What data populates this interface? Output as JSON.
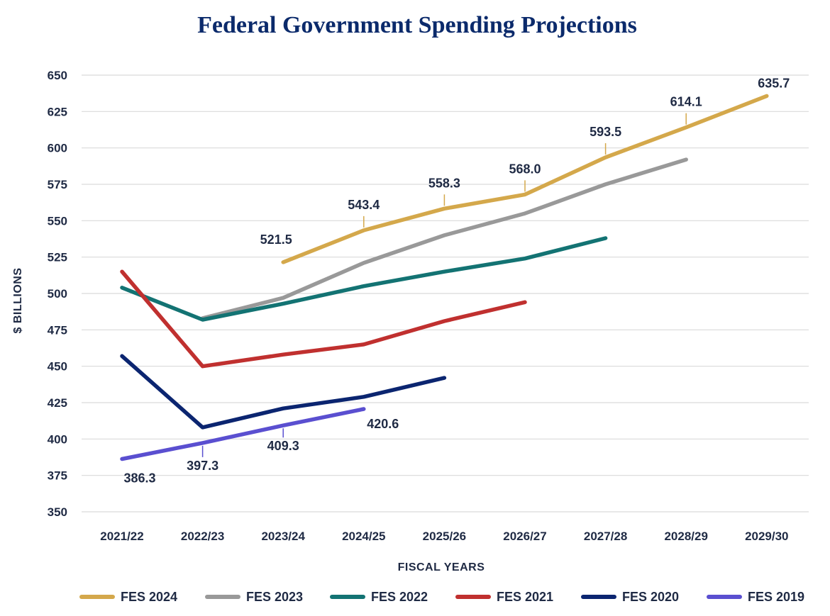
{
  "chart_data": {
    "type": "line",
    "title": "Federal Government Spending Projections",
    "xlabel": "FISCAL YEARS",
    "ylabel": "$ BILLIONS",
    "categories": [
      "2021/22",
      "2022/23",
      "2023/24",
      "2024/25",
      "2025/26",
      "2026/27",
      "2027/28",
      "2028/29",
      "2029/30"
    ],
    "ylim": [
      350,
      650
    ],
    "yticks": [
      350,
      375,
      400,
      425,
      450,
      475,
      500,
      525,
      550,
      575,
      600,
      625,
      650
    ],
    "grid": true,
    "legend_position": "bottom",
    "series": [
      {
        "name": "FES 2024",
        "color": "#d4a84b",
        "values": [
          null,
          null,
          521.5,
          543.4,
          558.3,
          568.0,
          593.5,
          614.1,
          635.7
        ],
        "labels": [
          null,
          null,
          "521.5",
          "543.4",
          "558.3",
          "568.0",
          "593.5",
          "614.1",
          "635.7"
        ]
      },
      {
        "name": "FES 2023",
        "color": "#999999",
        "values": [
          null,
          483,
          497,
          521,
          540,
          555,
          575,
          592,
          null
        ]
      },
      {
        "name": "FES 2022",
        "color": "#137373",
        "values": [
          504,
          482,
          493,
          505,
          515,
          524,
          538,
          null,
          null
        ]
      },
      {
        "name": "FES 2021",
        "color": "#c0302f",
        "values": [
          515,
          450,
          458,
          465,
          481,
          494,
          null,
          null,
          null
        ]
      },
      {
        "name": "FES 2020",
        "color": "#0b2570",
        "values": [
          457,
          408,
          421,
          429,
          442,
          null,
          null,
          null,
          null
        ]
      },
      {
        "name": "FES 2019",
        "color": "#5a4fd0",
        "values": [
          386.3,
          397.3,
          409.3,
          420.6,
          null,
          null,
          null,
          null,
          null
        ],
        "labels": [
          "386.3",
          "397.3",
          "409.3",
          "420.6",
          null,
          null,
          null,
          null,
          null
        ]
      }
    ]
  }
}
